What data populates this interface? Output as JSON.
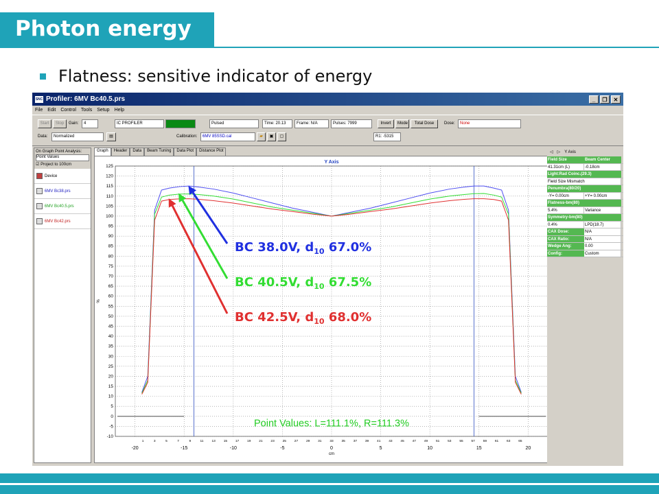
{
  "slide": {
    "title": "Photon energy",
    "bullet": "Flatness: sensitive indicator of energy"
  },
  "window": {
    "title": "Profiler: 6MV Bc40.5.prs",
    "icon_label": "SNC",
    "menu": [
      "File",
      "Edit",
      "Control",
      "Tools",
      "Setup",
      "Help"
    ]
  },
  "toolbar": {
    "start": "Start",
    "stop": "Stop",
    "gain_label": "Gain:",
    "gain_value": "4",
    "device": "IC PROFILER",
    "pulsed": "Pulsed",
    "time": "Time: 20.13",
    "frame": "Frame: N/A",
    "pulses": "Pulses: 7999",
    "invert": "Invert",
    "mode": "Mode",
    "total_dose": "Total Dose",
    "dose_label": "Dose:",
    "dose_value": "None",
    "data_label": "Data:",
    "data_value": "Normalized",
    "calibration_label": "Calibration:",
    "calibration_value": "6MV 85SSD.cal",
    "r1": "R1: -5315"
  },
  "left_panel": {
    "analysis_label": "On Graph Point Analysis:",
    "analysis_value": "Point Values",
    "project": "Project to 100cm",
    "items": [
      "Device",
      "6MV Bc38.prs",
      "6MV Bc40.5.prs",
      "6MV Bc42.prs"
    ]
  },
  "tabs": [
    "Graph",
    "Header",
    "Data",
    "Beam Tuning",
    "Data Plot",
    "Distance Plot"
  ],
  "right_panel": {
    "header": "Y Axis",
    "rows": [
      {
        "cells": [
          {
            "t": "Field Size",
            "h": true
          },
          {
            "t": "Beam Center",
            "h": true
          }
        ]
      },
      {
        "cells": [
          {
            "t": "41.31cm (L)"
          },
          {
            "t": "-0.18cm"
          }
        ]
      },
      {
        "cells": [
          {
            "t": "Light:Rad Coinc.(29.3)",
            "h": true,
            "span": true
          }
        ]
      },
      {
        "cells": [
          {
            "t": "Field Size Mismatch",
            "span": true
          }
        ]
      },
      {
        "cells": [
          {
            "t": "Penumbra(80/20)",
            "h": true,
            "span": true
          }
        ]
      },
      {
        "cells": [
          {
            "t": "-Y= 0.00cm"
          },
          {
            "t": "+Y= 0.00cm"
          }
        ]
      },
      {
        "cells": [
          {
            "t": "Flatness-bm(80)",
            "h": true,
            "span": true
          }
        ]
      },
      {
        "cells": [
          {
            "t": "5.4%"
          },
          {
            "t": "Variance"
          }
        ]
      },
      {
        "cells": [
          {
            "t": "Symmetry-bm(80)",
            "h": true,
            "span": true
          }
        ]
      },
      {
        "cells": [
          {
            "t": "0.4%"
          },
          {
            "t": "LPD(18.7)"
          }
        ]
      },
      {
        "cells": [
          {
            "t": "CAX Dose:",
            "h": true
          },
          {
            "t": "N/A"
          }
        ]
      },
      {
        "cells": [
          {
            "t": "CAX Ratio:",
            "h": true
          },
          {
            "t": "N/A"
          }
        ]
      },
      {
        "cells": [
          {
            "t": "Wedge Ang:",
            "h": true
          },
          {
            "t": "0.00"
          }
        ]
      },
      {
        "cells": [
          {
            "t": "Config:",
            "h": true
          },
          {
            "t": "Custom"
          }
        ]
      }
    ]
  },
  "chart_data": {
    "type": "line",
    "title": "Y Axis",
    "xlabel": "cm",
    "ylabel": "%",
    "xlim": [
      -22,
      22
    ],
    "ylim": [
      -10,
      125
    ],
    "x_ticks": [
      -20,
      -15,
      -10,
      -5,
      0,
      5,
      10,
      15,
      20
    ],
    "y_ticks": [
      125,
      120,
      115,
      110,
      105,
      100,
      95,
      90,
      85,
      80,
      75,
      70,
      65,
      60,
      55,
      50,
      45,
      40,
      35,
      30,
      25,
      20,
      15,
      10,
      5,
      0,
      -5,
      -10
    ],
    "detector_labels": [
      "1",
      "3",
      "5",
      "7",
      "9",
      "11",
      "13",
      "15",
      "17",
      "19",
      "21",
      "23",
      "25",
      "27",
      "29",
      "31",
      "33",
      "35",
      "37",
      "39",
      "41",
      "43",
      "45",
      "47",
      "49",
      "51",
      "53",
      "55",
      "57",
      "59",
      "61",
      "63",
      "65"
    ],
    "cursor_lines": [
      -14,
      14.5
    ],
    "series": [
      {
        "color": "#4c4cf0",
        "x": [
          -19.3,
          -18.7,
          -18.0,
          -17.3,
          -16.5,
          -15.5,
          -14.5,
          -13.5,
          -12.0,
          -10.0,
          -8.0,
          -6.0,
          -4.0,
          -2.0,
          0,
          2.0,
          4.0,
          6.0,
          8.0,
          10.0,
          12.0,
          13.5,
          14.5,
          15.5,
          16.5,
          17.3,
          18.0,
          18.7,
          19.3
        ],
        "values": [
          12,
          20,
          103,
          113,
          114,
          114.7,
          115,
          114.5,
          113.5,
          111.5,
          109,
          106.5,
          104,
          102,
          100,
          102,
          104,
          106.5,
          109,
          111.5,
          113.5,
          114.5,
          115,
          115,
          114,
          113,
          103,
          20,
          12
        ]
      },
      {
        "color": "#33dd33",
        "x": [
          -19.3,
          -18.7,
          -18.0,
          -17.3,
          -16.5,
          -15.5,
          -14.5,
          -13.5,
          -12.0,
          -10.0,
          -8.0,
          -6.0,
          -4.0,
          -2.0,
          0,
          2.0,
          4.0,
          6.0,
          8.0,
          10.0,
          12.0,
          13.5,
          14.5,
          15.5,
          16.5,
          17.3,
          18.0,
          18.7,
          19.3
        ],
        "values": [
          11.5,
          18,
          101,
          109.5,
          110.5,
          111,
          111.1,
          110.8,
          110,
          108.5,
          106.5,
          104.5,
          103,
          101.5,
          100,
          101.5,
          103,
          104.5,
          106.5,
          108.5,
          110,
          110.8,
          111.2,
          111.3,
          110.5,
          109.5,
          101,
          18,
          11.5
        ]
      },
      {
        "color": "#e03030",
        "x": [
          -19.3,
          -18.7,
          -18.0,
          -17.3,
          -16.5,
          -15.5,
          -14.5,
          -13.5,
          -12.0,
          -10.0,
          -8.0,
          -6.0,
          -4.0,
          -2.0,
          0,
          2.0,
          4.0,
          6.0,
          8.0,
          10.0,
          12.0,
          13.5,
          14.5,
          15.5,
          16.5,
          17.3,
          18.0,
          18.7,
          19.3
        ],
        "values": [
          11,
          17,
          98,
          107.5,
          108.3,
          108.6,
          108.7,
          108.4,
          107.7,
          106.5,
          105,
          103.5,
          102.3,
          101,
          100,
          101,
          102.3,
          103.5,
          105,
          106.5,
          107.7,
          108.4,
          108.7,
          108.7,
          108.3,
          107.5,
          98,
          17,
          11
        ]
      }
    ],
    "annotations": [
      {
        "color": "#2030e0",
        "label": "BC 38.0V, d",
        "sub": "10",
        "rest": " 67.0%"
      },
      {
        "color": "#33dd33",
        "label": "BC 40.5V, d",
        "sub": "10",
        "rest": " 67.5%"
      },
      {
        "color": "#e03030",
        "label": "BC 42.5V, d",
        "sub": "10",
        "rest": " 68.0%"
      }
    ],
    "point_values": "Point Values: L=111.1%, R=111.3%"
  }
}
